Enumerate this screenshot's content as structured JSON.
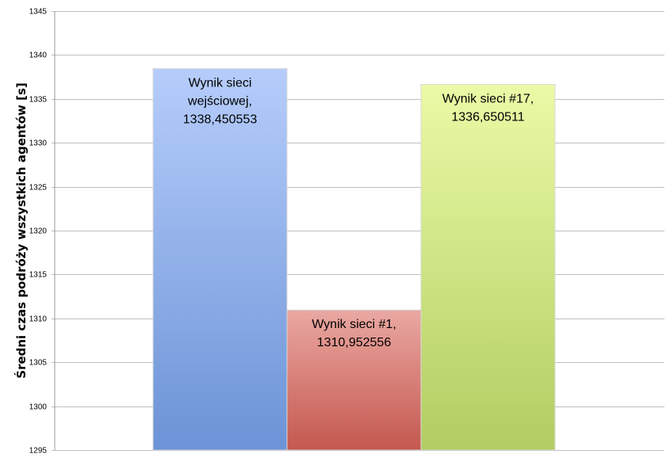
{
  "chart_data": {
    "type": "bar",
    "title": "",
    "xlabel": "",
    "ylabel": "Średni czas podróży wszystkich agentów [s]",
    "ylim": [
      1295,
      1345
    ],
    "yticks": [
      1295,
      1300,
      1305,
      1310,
      1315,
      1320,
      1325,
      1330,
      1335,
      1340,
      1345
    ],
    "grid": true,
    "legend": "none",
    "bars": [
      {
        "label_lines": [
          "Wynik sieci",
          "wejściowej,",
          "1338,450553"
        ],
        "value": 1338.450553,
        "color_top": "#b6cdfb",
        "color_bottom": "#6c93d6"
      },
      {
        "label_lines": [
          "Wynik sieci #1,",
          "1310,952556"
        ],
        "value": 1310.952556,
        "color_top": "#eaa8a2",
        "color_bottom": "#c4584f"
      },
      {
        "label_lines": [
          "Wynik sieci #17,",
          "1336,650511"
        ],
        "value": 1336.650511,
        "color_top": "#eafaa6",
        "color_bottom": "#b2cd62"
      }
    ]
  }
}
